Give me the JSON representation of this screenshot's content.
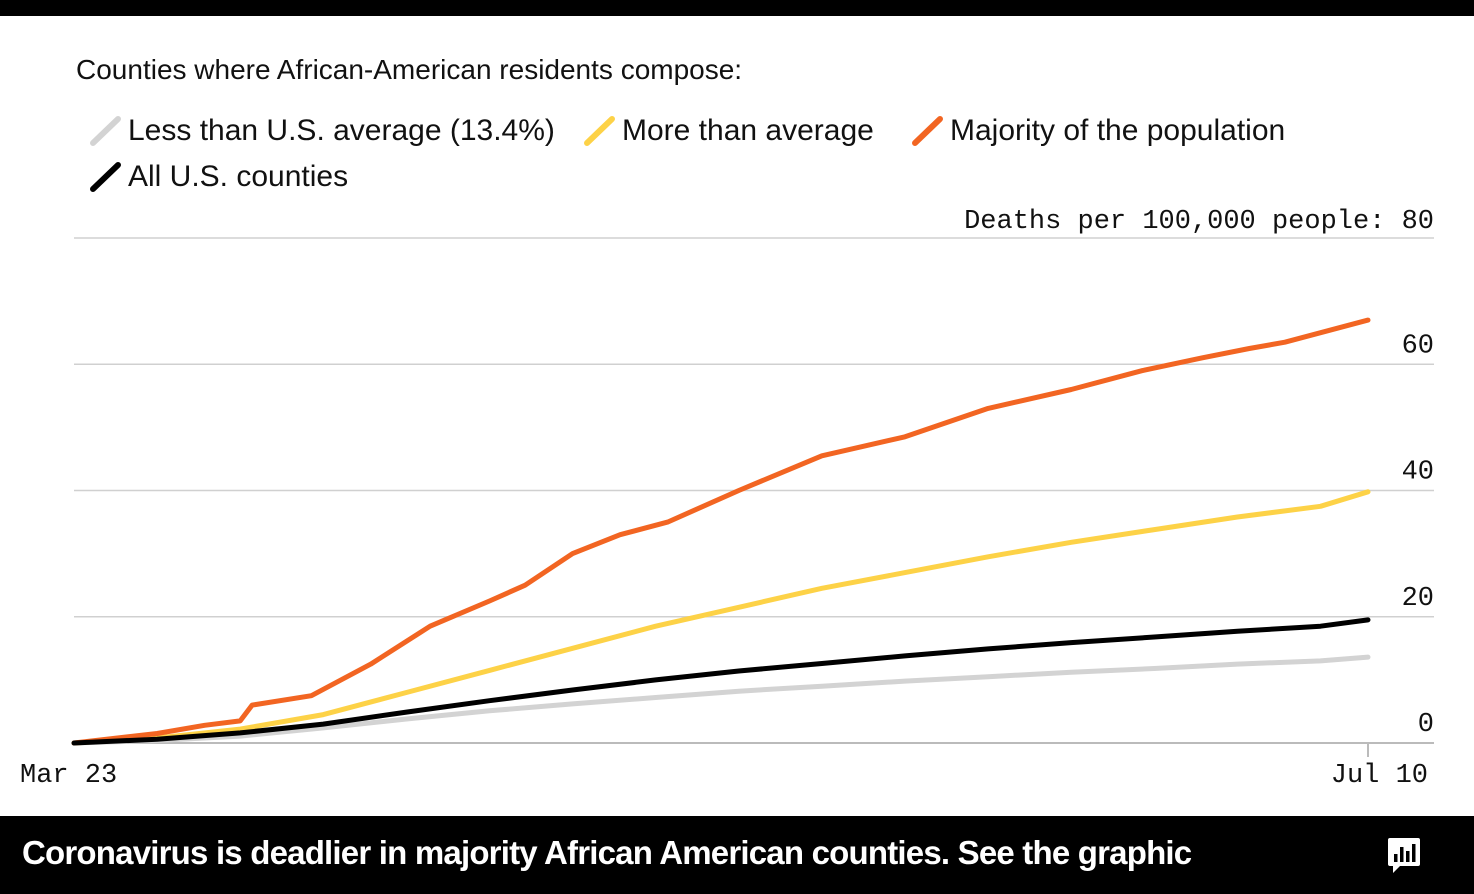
{
  "headline": {
    "text": "Coronavirus is deadlier in majority African American counties. See the graphic",
    "icon": "bar-chart-icon"
  },
  "chart_data": {
    "type": "line",
    "legend_title": "Counties where African-American residents compose:",
    "ylabel": "Deaths per 100,000 people:",
    "ylim": [
      0,
      80
    ],
    "yticks": [
      0,
      20,
      40,
      60,
      80
    ],
    "y_top_tick_label": "80",
    "ytick_labels": [
      "0",
      "20",
      "40",
      "60"
    ],
    "xlim": [
      0,
      109
    ],
    "x_start_label": "Mar 23",
    "x_end_label": "Jul 10",
    "grid": true,
    "series": [
      {
        "name": "Less than U.S. average (13.4%)",
        "color": "#d3d3d3",
        "x": [
          0,
          7,
          14,
          21,
          28,
          35,
          42,
          49,
          56,
          63,
          70,
          77,
          84,
          91,
          98,
          105,
          109
        ],
        "values": [
          0,
          0.4,
          1.1,
          2.4,
          3.8,
          5.1,
          6.2,
          7.2,
          8.2,
          9.0,
          9.8,
          10.5,
          11.2,
          11.8,
          12.5,
          13.0,
          13.6
        ]
      },
      {
        "name": "More than average",
        "color": "#fdd247",
        "x": [
          0,
          7,
          14,
          21,
          28,
          35,
          42,
          49,
          56,
          63,
          70,
          77,
          84,
          91,
          98,
          105,
          109
        ],
        "values": [
          0,
          0.8,
          2.2,
          4.5,
          8.0,
          11.5,
          15.0,
          18.5,
          21.5,
          24.5,
          27.0,
          29.5,
          31.8,
          33.8,
          35.8,
          37.5,
          39.8
        ]
      },
      {
        "name": "Majority of the population",
        "color": "#f26522",
        "x": [
          0,
          7,
          11,
          14,
          15,
          20,
          25,
          30,
          35,
          38,
          42,
          46,
          50,
          56,
          63,
          70,
          77,
          84,
          90,
          95,
          99,
          102,
          109
        ],
        "values": [
          0,
          1.5,
          2.8,
          3.5,
          6.0,
          7.5,
          12.5,
          18.5,
          22.5,
          25.0,
          30.0,
          33.0,
          35.0,
          40.0,
          45.5,
          48.5,
          53.0,
          56.0,
          59.0,
          61.0,
          62.5,
          63.5,
          67.0
        ]
      },
      {
        "name": "All U.S. counties",
        "color": "#000000",
        "x": [
          0,
          7,
          14,
          21,
          28,
          35,
          42,
          49,
          56,
          63,
          70,
          77,
          84,
          91,
          98,
          105,
          109
        ],
        "values": [
          0,
          0.6,
          1.6,
          3.0,
          4.9,
          6.7,
          8.4,
          10.0,
          11.4,
          12.6,
          13.8,
          14.9,
          15.9,
          16.8,
          17.7,
          18.5,
          19.5
        ]
      }
    ]
  }
}
